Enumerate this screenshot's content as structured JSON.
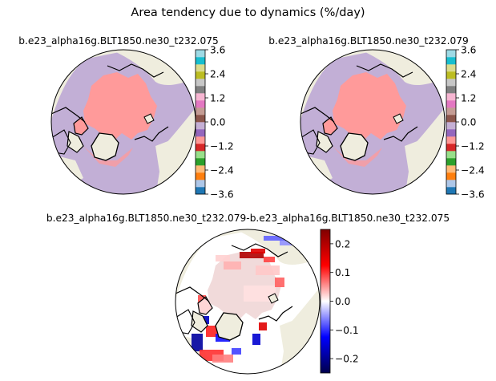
{
  "figure": {
    "suptitle": "Area tendency due to dynamics (%/day)"
  },
  "colors": {
    "land": "#efedde",
    "ocean_purple": "#c2afd6",
    "ice_salmon": "#ff9a9a",
    "coast": "#000000"
  },
  "chart_data": [
    {
      "type": "heatmap",
      "title": "b.e23_alpha16g.BLT1850.ne30_t232.075",
      "projection": "north-polar-stereographic",
      "colorbar": {
        "style": "discrete",
        "range": [
          -3.6,
          3.6
        ],
        "ticks": [
          -3.6,
          -2.4,
          -1.2,
          0.0,
          1.2,
          2.4,
          3.6
        ],
        "tick_labels": [
          "−3.6",
          "−2.4",
          "−1.2",
          "0.0",
          "1.2",
          "2.4",
          "3.6"
        ],
        "colors": [
          "#1f77b4",
          "#aec7e8",
          "#ff7f0e",
          "#ffbb78",
          "#2ca02c",
          "#98df8a",
          "#d62728",
          "#ff9896",
          "#9467bd",
          "#c5b0d5",
          "#8c564b",
          "#c49c94",
          "#e377c2",
          "#f7b6d2",
          "#7f7f7f",
          "#c7c7c7",
          "#bcbd22",
          "#dbdb8d",
          "#17becf",
          "#9edae5"
        ]
      }
    },
    {
      "type": "heatmap",
      "title": "b.e23_alpha16g.BLT1850.ne30_t232.079",
      "projection": "north-polar-stereographic",
      "colorbar": {
        "style": "discrete",
        "range": [
          -3.6,
          3.6
        ],
        "ticks": [
          -3.6,
          -2.4,
          -1.2,
          0.0,
          1.2,
          2.4,
          3.6
        ],
        "tick_labels": [
          "−3.6",
          "−2.4",
          "−1.2",
          "0.0",
          "1.2",
          "2.4",
          "3.6"
        ],
        "colors": [
          "#1f77b4",
          "#aec7e8",
          "#ff7f0e",
          "#ffbb78",
          "#2ca02c",
          "#98df8a",
          "#d62728",
          "#ff9896",
          "#9467bd",
          "#c5b0d5",
          "#8c564b",
          "#c49c94",
          "#e377c2",
          "#f7b6d2",
          "#7f7f7f",
          "#c7c7c7",
          "#bcbd22",
          "#dbdb8d",
          "#17becf",
          "#9edae5"
        ]
      }
    },
    {
      "type": "heatmap",
      "title": "b.e23_alpha16g.BLT1850.ne30_t232.079-b.e23_alpha16g.BLT1850.ne30_t232.075",
      "projection": "north-polar-stereographic",
      "colorbar": {
        "style": "continuous",
        "colormap": "seismic",
        "range": [
          -0.25,
          0.25
        ],
        "ticks": [
          -0.2,
          -0.1,
          0.0,
          0.1,
          0.2
        ],
        "tick_labels": [
          "−0.2",
          "−0.1",
          "0.0",
          "0.1",
          "0.2"
        ]
      }
    }
  ]
}
